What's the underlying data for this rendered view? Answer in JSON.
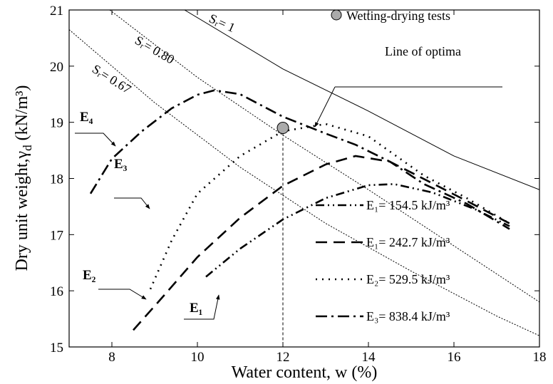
{
  "chart_data": {
    "type": "line",
    "xlabel": "Water content, w (%)",
    "ylabel": {
      "text": "Dry unit weight,γ",
      "sub": "d",
      "tail": " (kN/m³)"
    },
    "xlim": [
      7,
      18
    ],
    "xticks": [
      8,
      10,
      12,
      14,
      16,
      18
    ],
    "ylim": [
      15,
      21
    ],
    "yticks": [
      15,
      16,
      17,
      18,
      19,
      20,
      21
    ],
    "series": [
      {
        "name": "E₁= 154.5  kJ/m³",
        "color": "#000000",
        "dash": "dash-dot-dot",
        "x": [
          10.2,
          11,
          12,
          13,
          14,
          14.6,
          15.5,
          16.5,
          17.3
        ],
        "values": [
          16.25,
          16.75,
          17.27,
          17.65,
          17.88,
          17.9,
          17.75,
          17.45,
          17.15
        ]
      },
      {
        "name": "E₁= 242.7 kJ/m³",
        "color": "#000000",
        "dash": "long-dash",
        "x": [
          8.5,
          9.2,
          10,
          11,
          12,
          13,
          13.7,
          14.5,
          15.3,
          16.3,
          17.3
        ],
        "values": [
          15.3,
          15.9,
          16.6,
          17.3,
          17.87,
          18.25,
          18.4,
          18.3,
          17.99,
          17.6,
          17.2
        ]
      },
      {
        "name": "E₂= 529.5 kJ/m³",
        "color": "#000000",
        "dash": "dot",
        "x": [
          8.9,
          9.4,
          10,
          11,
          12,
          13,
          14,
          15.3,
          16.3,
          17.3
        ],
        "values": [
          16.03,
          16.9,
          17.73,
          18.4,
          18.84,
          18.97,
          18.75,
          18.05,
          17.65,
          17.2
        ]
      },
      {
        "name": "E₃= 838.4 kJ/m³",
        "color": "#000000",
        "dash": "dash-dot",
        "x": [
          7.5,
          8,
          8.7,
          9.4,
          10,
          10.4,
          11,
          12,
          13,
          13.7,
          14.5,
          15.3,
          16.3,
          17.3
        ],
        "values": [
          17.73,
          18.35,
          18.84,
          19.25,
          19.49,
          19.57,
          19.5,
          19.1,
          18.8,
          18.6,
          18.3,
          17.9,
          17.55,
          17.1
        ]
      }
    ],
    "saturation_lines": [
      {
        "name": "Sᵣ= 1",
        "x": [
          9.7,
          12,
          14,
          16,
          18
        ],
        "values": [
          21,
          19.95,
          19.2,
          18.4,
          17.8
        ]
      },
      {
        "name": "Sᵣ= 0.80",
        "x": [
          7.95,
          10,
          12,
          14,
          16,
          18
        ],
        "values": [
          21,
          19.8,
          18.77,
          17.8,
          16.8,
          15.8
        ]
      },
      {
        "name": "Sᵣ= 0.67",
        "x": [
          7,
          9,
          11,
          13,
          15,
          17,
          18
        ],
        "values": [
          20.65,
          19.35,
          18.2,
          17.2,
          16.35,
          15.55,
          15.2
        ]
      }
    ],
    "points": [
      {
        "name": "Wetting-drying tests",
        "x": 12,
        "y": 18.9
      }
    ],
    "annotations": {
      "optima": "Line of optima",
      "e4": "E₄",
      "e3": "E₃",
      "e2": "E₂",
      "e1": "E₁"
    }
  }
}
